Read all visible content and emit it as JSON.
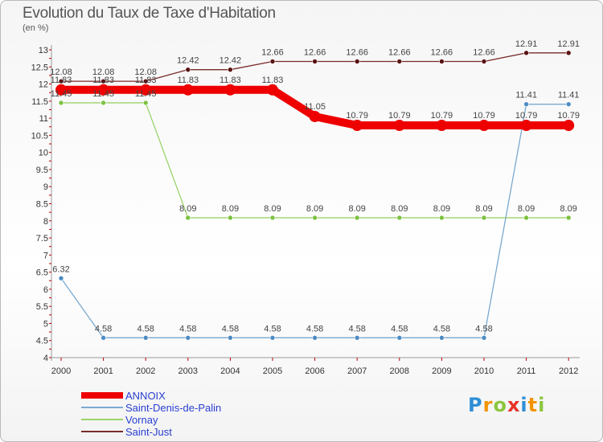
{
  "header": {
    "title": "Evolution du Taux de Taxe d'Habitation",
    "subtitle": "(en %)"
  },
  "chart_data": {
    "type": "line",
    "title": "Evolution du Taux de Taxe d'Habitation",
    "ylabel": "(en %)",
    "x": [
      "2000",
      "2001",
      "2002",
      "2003",
      "2004",
      "2005",
      "2006",
      "2007",
      "2008",
      "2009",
      "2010",
      "2011",
      "2012"
    ],
    "ylim": [
      4,
      13
    ],
    "yticks": [
      "4",
      "4.5",
      "5",
      "5.5",
      "6",
      "6.5",
      "7",
      "7.5",
      "8",
      "8.5",
      "9",
      "9.5",
      "10",
      "10.5",
      "11",
      "11.5",
      "12",
      "12.5",
      "13"
    ],
    "grid": false,
    "legend_position": "bottom-left",
    "series": [
      {
        "name": "Saint-Just",
        "color": "#7a2b2b",
        "marker": "#5a1212",
        "values": [
          12.08,
          12.08,
          12.08,
          12.42,
          12.42,
          12.66,
          12.66,
          12.66,
          12.66,
          12.66,
          12.66,
          12.91,
          12.91
        ],
        "labels": [
          "12.08",
          "12.08",
          "12.08",
          "12.42",
          "12.42",
          "12.66",
          "12.66",
          "12.66",
          "12.66",
          "12.66",
          "12.66",
          "12.91",
          "12.91"
        ]
      },
      {
        "name": "Vornay",
        "color": "#9bd36a",
        "marker": "#7cc242",
        "values": [
          11.45,
          11.45,
          11.45,
          8.09,
          8.09,
          8.09,
          8.09,
          8.09,
          8.09,
          8.09,
          8.09,
          8.09,
          8.09
        ],
        "labels": [
          "11.45",
          "11.45",
          "11.45",
          "8.09",
          "8.09",
          "8.09",
          "8.09",
          "8.09",
          "8.09",
          "8.09",
          "8.09",
          "8.09",
          "8.09"
        ]
      },
      {
        "name": "Saint-Denis-de-Palin",
        "color": "#7aa9cf",
        "marker": "#4d8cc4",
        "values": [
          6.32,
          4.58,
          4.58,
          4.58,
          4.58,
          4.58,
          4.58,
          4.58,
          4.58,
          4.58,
          4.58,
          11.41,
          11.41
        ],
        "labels": [
          "6.32",
          "4.58",
          "4.58",
          "4.58",
          "4.58",
          "4.58",
          "4.58",
          "4.58",
          "4.58",
          "4.58",
          "4.58",
          "11.41",
          "11.41"
        ]
      },
      {
        "name": "ANNOIX",
        "color": "#ee0000",
        "marker": "#ee0000",
        "values": [
          11.83,
          11.83,
          11.83,
          11.83,
          11.83,
          11.83,
          11.05,
          10.79,
          10.79,
          10.79,
          10.79,
          10.79,
          10.79
        ],
        "labels": [
          "11.83",
          "11.83",
          "11.83",
          "11.83",
          "11.83",
          "11.83",
          "11.05",
          "10.79",
          "10.79",
          "10.79",
          "10.79",
          "10.79",
          "10.79"
        ]
      }
    ]
  },
  "legend": {
    "items": [
      {
        "label": "ANNOIX",
        "color": "#ee0000"
      },
      {
        "label": "Saint-Denis-de-Palin",
        "color": "#7aa9cf"
      },
      {
        "label": "Vornay",
        "color": "#9bd36a"
      },
      {
        "label": "Saint-Just",
        "color": "#7a2b2b"
      }
    ]
  },
  "logo": {
    "text": "Proxiti",
    "letters": [
      "P",
      "r",
      "o",
      "x",
      "i",
      "t",
      "i"
    ],
    "colors": [
      "#2e8fd6",
      "#f29400",
      "#8cc63f",
      "#e63329",
      "#2e8fd6",
      "#f29400",
      "#8cc63f"
    ]
  }
}
